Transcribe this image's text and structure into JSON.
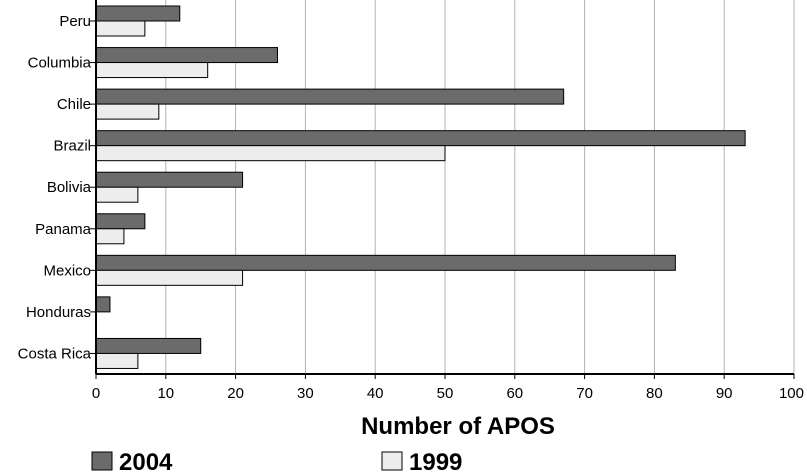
{
  "chart_data": {
    "type": "bar",
    "orientation": "horizontal",
    "categories": [
      "Peru",
      "Columbia",
      "Chile",
      "Brazil",
      "Bolivia",
      "Panama",
      "Mexico",
      "Honduras",
      "Costa Rica"
    ],
    "series": [
      {
        "name": "2004",
        "color": "#6b6b6b",
        "values": [
          12,
          26,
          67,
          93,
          21,
          7,
          83,
          2,
          15
        ]
      },
      {
        "name": "1999",
        "color": "#ededed",
        "values": [
          7,
          16,
          9,
          50,
          6,
          4,
          21,
          0,
          6
        ]
      }
    ],
    "xlabel": "Number of APOS",
    "xlim": [
      0,
      100
    ],
    "xticks": [
      "0",
      "10",
      "20",
      "30",
      "40",
      "50",
      "60",
      "70",
      "80",
      "90",
      "100"
    ],
    "grid": "vertical",
    "legend_position": "bottom"
  }
}
